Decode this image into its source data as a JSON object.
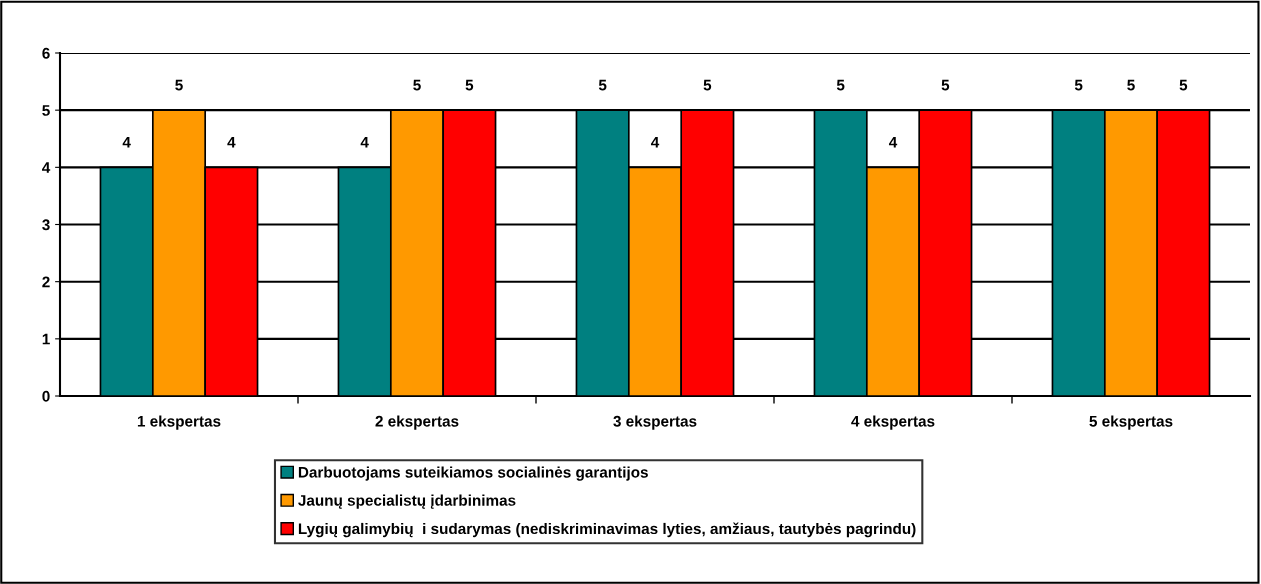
{
  "chart_data": {
    "type": "bar",
    "categories": [
      "1 ekspertas",
      "2 ekspertas",
      "3 ekspertas",
      "4 ekspertas",
      "5 ekspertas"
    ],
    "series": [
      {
        "name": "Darbuotojams suteikiamos socialinės garantijos",
        "color": "#008080",
        "values": [
          4,
          4,
          5,
          5,
          5
        ]
      },
      {
        "name": "Jaunų specialistų įdarbinimas",
        "color": "#ff9900",
        "values": [
          5,
          5,
          4,
          4,
          5
        ]
      },
      {
        "name": "Lygių galimybių  i sudarymas (nediskriminavimas lyties, amžiaus, tautybės pagrindu)",
        "color": "#ff0000",
        "values": [
          4,
          5,
          5,
          5,
          5
        ]
      }
    ],
    "ylim": [
      0,
      6
    ],
    "yticks": [
      0,
      1,
      2,
      3,
      4,
      5,
      6
    ],
    "grid": "y",
    "legend": "bottom",
    "data_labels": true
  }
}
